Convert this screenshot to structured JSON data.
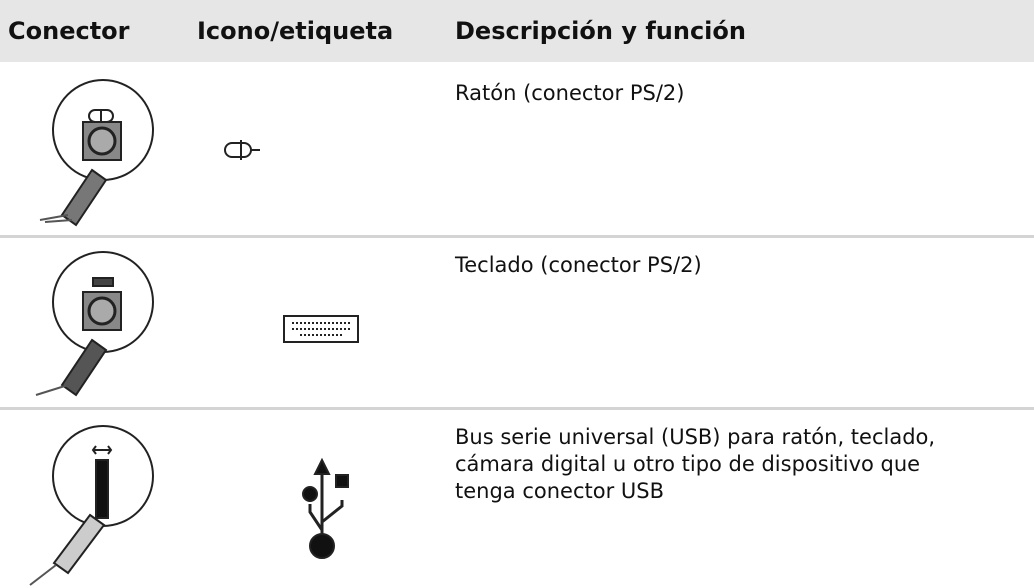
{
  "header": [
    "Conector",
    "Icono/etiqueta",
    "Descripción y función"
  ],
  "rows": [
    {
      "description": [
        "Ratón (conector PS/2)"
      ]
    },
    {
      "description": [
        "Teclado (conector PS/2)"
      ]
    },
    {
      "description": [
        "Bus serie universal (USB) para ratón, teclado,",
        "cámara digital u otro tipo de dispositivo que",
        "tenga conector USB"
      ]
    }
  ]
}
